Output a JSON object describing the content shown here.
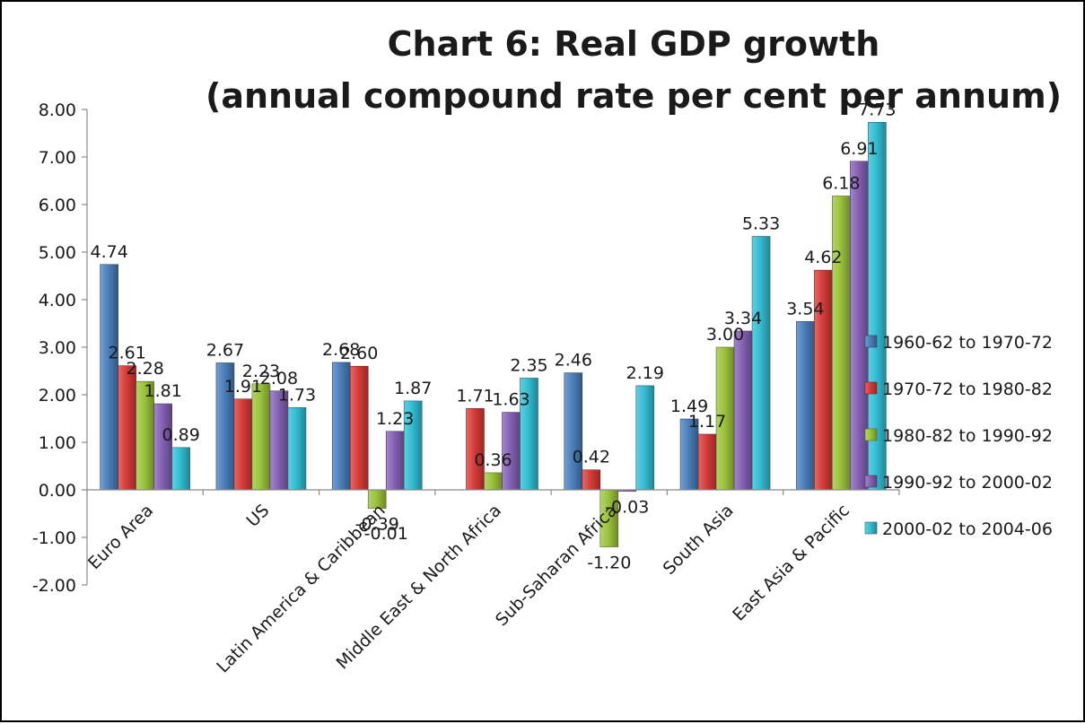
{
  "chart_data": {
    "type": "bar",
    "title": "Chart 6: Real GDP growth",
    "subtitle": "(annual compound rate per cent per annum)",
    "xlabel": "",
    "ylabel": "",
    "ylim": [
      -2,
      8
    ],
    "ytick_step": 1,
    "ytick_decimals": 2,
    "grid": false,
    "legend_position": "right",
    "categories": [
      "Euro Area",
      "US",
      "Latin America & Caribbean",
      "Middle East & North Africa",
      "Sub-Saharan Africa",
      "South Asia",
      "East Asia & Pacific"
    ],
    "series": [
      {
        "name": "1960-62 to 1970-72",
        "color": "#4a7ebb",
        "values": [
          4.74,
          2.67,
          2.68,
          null,
          2.46,
          1.49,
          3.54
        ],
        "labels": [
          "4.74",
          "2.67",
          "2.68",
          "",
          "2.46",
          "1.49",
          "3.54"
        ]
      },
      {
        "name": "1970-72 to 1980-82",
        "color": "#d63b38",
        "values": [
          2.61,
          1.91,
          2.6,
          1.71,
          0.42,
          1.17,
          4.62
        ],
        "labels": [
          "2.61",
          "1.91",
          "2.60",
          "1.71",
          "0.42",
          "1.17",
          "4.62"
        ]
      },
      {
        "name": "1980-82 to 1990-92",
        "color": "#9bc33c",
        "values": [
          2.28,
          2.23,
          -0.39,
          0.36,
          -1.2,
          3.0,
          6.18
        ],
        "labels": [
          "2.28",
          "2.23",
          "-0.39",
          "0.36",
          "-1.20",
          "3.00",
          "6.18"
        ]
      },
      {
        "name": "1990-92 to 2000-02",
        "color": "#8560b4",
        "values": [
          1.81,
          2.08,
          1.23,
          1.63,
          -0.03,
          3.34,
          6.91
        ],
        "labels": [
          "1.81",
          "2.08",
          "1.23",
          "1.63",
          "-0.03",
          "3.34",
          "6.91"
        ]
      },
      {
        "name": "2000-02 to 2004-06",
        "color": "#33bcd3",
        "values": [
          0.89,
          1.73,
          1.87,
          2.35,
          2.19,
          5.33,
          7.73
        ],
        "labels": [
          "0.89",
          "1.73",
          "1.87",
          "2.35",
          "2.19",
          "5.33",
          "7.73"
        ]
      }
    ],
    "annotations": [
      {
        "text": "-0.01",
        "category_index": 2
      }
    ]
  }
}
